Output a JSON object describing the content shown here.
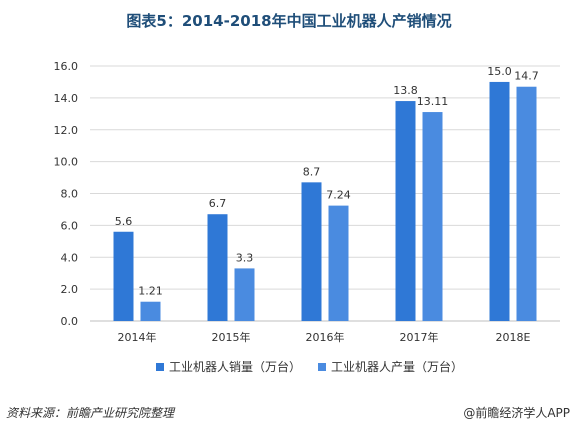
{
  "title": "图表5：2014-2018年中国工业机器人产销情况",
  "source": "资料来源：前瞻产业研究院整理",
  "brand": "@前瞻经济学人APP",
  "chart_data": {
    "type": "bar",
    "categories": [
      "2014年",
      "2015年",
      "2016年",
      "2017年",
      "2018E"
    ],
    "series": [
      {
        "name": "工业机器人销量（万台）",
        "values": [
          5.6,
          6.7,
          8.7,
          13.8,
          15.0
        ],
        "labels": [
          "5.6",
          "6.7",
          "8.7",
          "13.8",
          "15.0"
        ],
        "color": "#2f78d6"
      },
      {
        "name": "工业机器人产量（万台）",
        "values": [
          1.21,
          3.3,
          7.24,
          13.11,
          14.7
        ],
        "labels": [
          "1.21",
          "3.3",
          "7.24",
          "13.11",
          "14.7"
        ],
        "color": "#4a8be0"
      }
    ],
    "ylim": [
      0,
      16
    ],
    "yticks": [
      "0.0",
      "2.0",
      "4.0",
      "6.0",
      "8.0",
      "10.0",
      "12.0",
      "14.0",
      "16.0"
    ],
    "grid": true,
    "legend_position": "bottom"
  }
}
